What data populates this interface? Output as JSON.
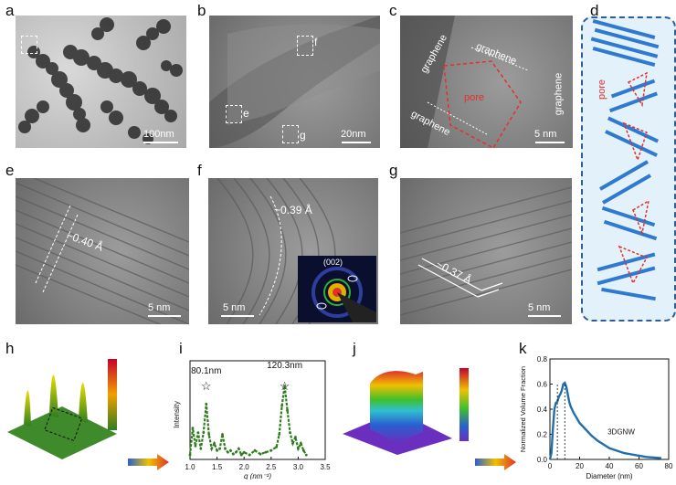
{
  "panel_labels": [
    "a",
    "b",
    "c",
    "d",
    "e",
    "f",
    "g",
    "h",
    "i",
    "j",
    "k"
  ],
  "panel_a": {
    "scale": "100nm"
  },
  "panel_b": {
    "scale": "20nm",
    "boxes": [
      "f",
      "e",
      "g"
    ]
  },
  "panel_c": {
    "scale": "5 nm",
    "graphene_left": "graphene",
    "graphene_top": "graphene",
    "graphene_bottom": "graphene",
    "graphene_right": "graphene",
    "pore": "pore"
  },
  "panel_d": {
    "pore": "pore"
  },
  "panel_e": {
    "scale": "5 nm",
    "spacing": "~0.40 Å"
  },
  "panel_f": {
    "scale": "5 nm",
    "spacing": "~0.39 Å",
    "inset_label": "(002)"
  },
  "panel_g": {
    "scale": "5 nm",
    "spacing": "~0.37 Å"
  },
  "chart_data": [
    {
      "panel": "i",
      "type": "line",
      "xlabel": "q (nm⁻¹)",
      "ylabel": "Intensity",
      "xlim": [
        1.0,
        3.5
      ],
      "xticks": [
        "1.0",
        "1.5",
        "2.0",
        "2.5",
        "3.0",
        "3.5"
      ],
      "color": "#2f7d1f",
      "annotations": [
        {
          "text": "80.1nm",
          "x": 1.3
        },
        {
          "text": "120.3nm",
          "x": 2.75
        }
      ],
      "series": [
        {
          "x": [
            1.0,
            1.05,
            1.1,
            1.15,
            1.2,
            1.25,
            1.3,
            1.35,
            1.4,
            1.45,
            1.5,
            1.55,
            1.6,
            1.65,
            1.7,
            1.75,
            1.8,
            1.85,
            1.9,
            1.95,
            2.0,
            2.1,
            2.2,
            2.3,
            2.4,
            2.5,
            2.6,
            2.65,
            2.7,
            2.75,
            2.8,
            2.85,
            2.9,
            2.95,
            3.0,
            3.05,
            3.1,
            3.15
          ],
          "y": [
            0.05,
            0.35,
            0.15,
            0.3,
            0.12,
            0.3,
            0.62,
            0.28,
            0.12,
            0.18,
            0.1,
            0.12,
            0.28,
            0.12,
            0.08,
            0.1,
            0.06,
            0.08,
            0.12,
            0.05,
            0.08,
            0.05,
            0.1,
            0.06,
            0.08,
            0.1,
            0.14,
            0.28,
            0.6,
            0.82,
            0.55,
            0.3,
            0.18,
            0.25,
            0.12,
            0.18,
            0.1,
            0.05
          ]
        }
      ]
    },
    {
      "panel": "k",
      "type": "line",
      "xlabel": "Diameter (nm)",
      "ylabel": "Normalized Volume Fraction",
      "xlim": [
        0,
        80
      ],
      "ylim": [
        0,
        0.8
      ],
      "xticks": [
        "0",
        "20",
        "40",
        "60",
        "80"
      ],
      "yticks": [
        "0.0",
        "0.2",
        "0.4",
        "0.6",
        "0.8"
      ],
      "color": "#1f6fad",
      "legend": "3DGNW",
      "series": [
        {
          "name": "3DGNW",
          "x": [
            0,
            1,
            2,
            3,
            4,
            5,
            6,
            7,
            8,
            9,
            10,
            11,
            12,
            13,
            14,
            16,
            18,
            20,
            24,
            28,
            32,
            36,
            40,
            45,
            50,
            55,
            60,
            65,
            70,
            75
          ],
          "y": [
            0.0,
            0.05,
            0.25,
            0.4,
            0.45,
            0.46,
            0.5,
            0.52,
            0.55,
            0.6,
            0.61,
            0.58,
            0.52,
            0.46,
            0.42,
            0.37,
            0.33,
            0.29,
            0.24,
            0.19,
            0.15,
            0.12,
            0.09,
            0.07,
            0.05,
            0.04,
            0.03,
            0.02,
            0.015,
            0.01
          ]
        }
      ]
    }
  ]
}
